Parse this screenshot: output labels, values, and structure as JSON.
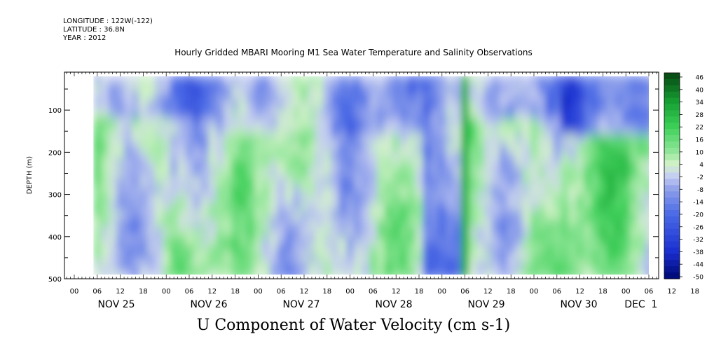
{
  "header": {
    "longitude": "LONGITUDE : 122W(-122)",
    "latitude": "LATITUDE : 36.8N",
    "year": "YEAR : 2012"
  },
  "chart_data": {
    "type": "heatmap",
    "title": "Hourly Gridded MBARI Mooring M1 Sea Water Temperature and Salinity Observations",
    "xlabel": "U Component of Water Velocity (cm s-1)",
    "ylabel": "DEPTH (m)",
    "ylim": [
      500,
      10
    ],
    "y_ticks": [
      "100",
      "200",
      "300",
      "400",
      "500"
    ],
    "hour_ticks": [
      "00",
      "06",
      "12",
      "18",
      "00",
      "06",
      "12",
      "18",
      "00",
      "06",
      "12",
      "18",
      "00",
      "06",
      "12",
      "18",
      "00",
      "06",
      "12",
      "18",
      "00",
      "06",
      "12",
      "18",
      "00",
      "06",
      "12",
      "18",
      "00",
      "06"
    ],
    "day_labels": [
      "NOV 25",
      "NOV 26",
      "NOV 27",
      "NOV 28",
      "NOV 29",
      "NOV 30",
      "DEC",
      "1"
    ],
    "colorbar": {
      "labels": [
        "46",
        "40",
        "34",
        "28",
        "22",
        "16",
        "10",
        "4",
        "-2",
        "-8",
        "-14",
        "-20",
        "-26",
        "-32",
        "-38",
        "-44",
        "-50"
      ],
      "min": -50,
      "max": 48,
      "step": 3,
      "colors": {
        "dark_blue": "#000a7a",
        "blue": "#2f4fe0",
        "light_blue": "#b8c4f0",
        "light_green": "#c8f0c0",
        "green": "#22c840",
        "dark_green": "#084a14"
      }
    },
    "data_note_ranges": {
      "depth_min": 20,
      "depth_max": 490,
      "start": "Nov 25 05:00",
      "end": "Dec 1 06:00"
    }
  }
}
